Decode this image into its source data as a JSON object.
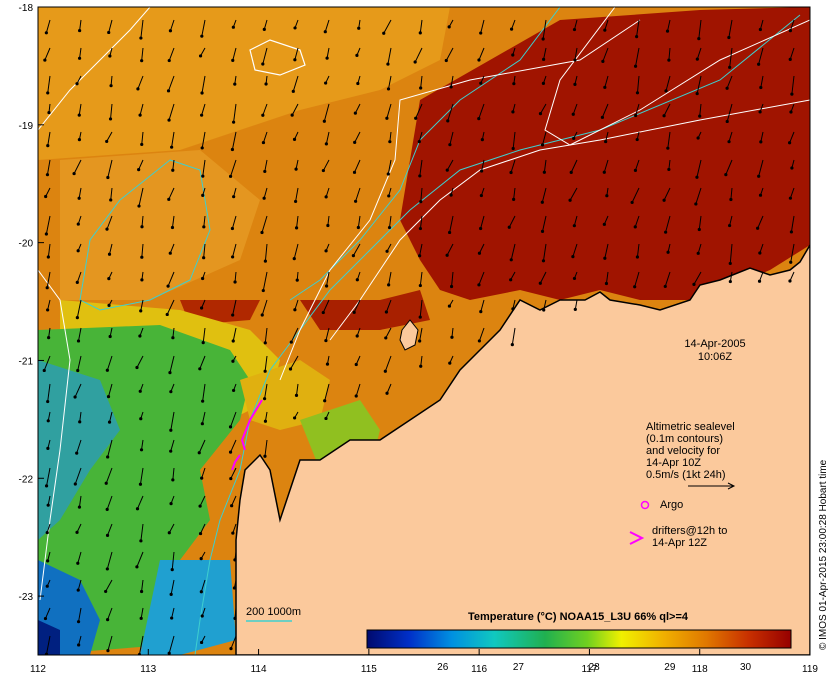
{
  "map": {
    "lon_range": [
      112,
      119
    ],
    "lat_range": [
      -23.5,
      -18
    ],
    "lon_ticks": [
      "112",
      "113",
      "114",
      "115",
      "116",
      "117",
      "118",
      "119"
    ],
    "lat_ticks": [
      "-18",
      "-19",
      "-20",
      "-21",
      "-22",
      "-23"
    ],
    "colors": {
      "land": "#fbc99c",
      "coast": "#000000",
      "contour_white": "#ffffff",
      "contour_cyan": "#3ecfcf",
      "arrow": "#000000",
      "drifter": "#ff00ff",
      "argo": "#ff00ff"
    }
  },
  "overlay": {
    "date": "14-Apr-2005",
    "time": "10:06Z"
  },
  "legend": {
    "sealevel_lines": [
      "Altimetric sealevel",
      "(0.1m contours)",
      "and velocity for",
      "14-Apr 10Z",
      "0.5m/s (1kt 24h)"
    ],
    "argo_label": "Argo",
    "drifters_lines": [
      "drifters@12h to",
      "14-Apr 12Z"
    ],
    "bathy_label": "200  1000m"
  },
  "colorbar": {
    "title": "Temperature (°C) NOAA15_L3U 66% ql>=4",
    "ticks": [
      "26",
      "27",
      "28",
      "29",
      "30"
    ],
    "tick_values": [
      26,
      27,
      28,
      29,
      30
    ],
    "range": [
      25,
      30.6
    ]
  },
  "credit": "© IMOS 01-Apr-2015 23:00:28 Hobart time"
}
